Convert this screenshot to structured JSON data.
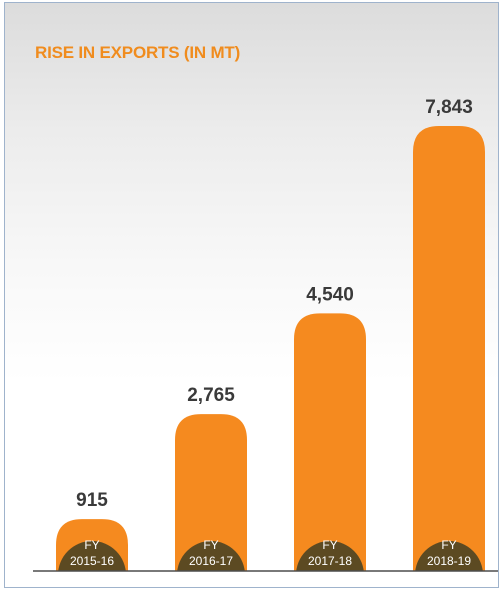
{
  "colors": {
    "bar": "#f58a1f",
    "badge": "#5c4a22",
    "title": "#f08c1e",
    "value_text": "#3a3a3a"
  },
  "chart_data": {
    "type": "bar",
    "title": "RISE IN EXPORTS (IN MT)",
    "categories": [
      "FY 2015-16",
      "FY 2016-17",
      "FY 2017-18",
      "FY 2018-19"
    ],
    "category_lines": [
      [
        "FY",
        "2015-16"
      ],
      [
        "FY",
        "2016-17"
      ],
      [
        "FY",
        "2017-18"
      ],
      [
        "FY",
        "2018-19"
      ]
    ],
    "values": [
      915,
      2765,
      4540,
      7843
    ],
    "value_labels": [
      "915",
      "2,765",
      "4,540",
      "7,843"
    ],
    "xlabel": "",
    "ylabel": "",
    "grid": false,
    "legend": "none"
  }
}
